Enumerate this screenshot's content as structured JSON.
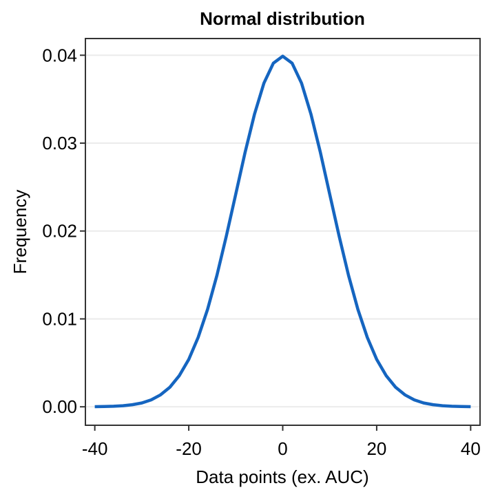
{
  "chart_data": {
    "type": "line",
    "title": "Normal distribution",
    "xlabel": "Data points (ex. AUC)",
    "ylabel": "Frequency",
    "xlim": [
      -42,
      42
    ],
    "ylim": [
      -0.0021,
      0.0419
    ],
    "xticks": [
      -40,
      -20,
      0,
      20,
      40
    ],
    "xtick_labels": [
      "-40",
      "-20",
      "0",
      "20",
      "40"
    ],
    "yticks": [
      0,
      0.01,
      0.02,
      0.03,
      0.04
    ],
    "ytick_labels": [
      "0.00",
      "0.01",
      "0.02",
      "0.03",
      "0.04"
    ],
    "grid": "horizontal major",
    "legend": "none",
    "series": [
      {
        "color": "#1565C0",
        "x": [
          -40,
          -38,
          -36,
          -34,
          -32,
          -30,
          -28,
          -26,
          -24,
          -22,
          -20,
          -18,
          -16,
          -14,
          -12,
          -10,
          -8,
          -6,
          -4,
          -2,
          0,
          2,
          4,
          6,
          8,
          10,
          12,
          14,
          16,
          18,
          20,
          22,
          24,
          26,
          28,
          30,
          32,
          34,
          36,
          38,
          40
        ],
        "y": [
          1e-05,
          3e-05,
          6e-05,
          0.00012,
          0.00024,
          0.00044,
          0.00079,
          0.00136,
          0.00224,
          0.00355,
          0.0054,
          0.00789,
          0.01109,
          0.01497,
          0.01942,
          0.0242,
          0.02897,
          0.03332,
          0.03683,
          0.0391,
          0.03989,
          0.0391,
          0.03683,
          0.03332,
          0.02897,
          0.0242,
          0.01942,
          0.01497,
          0.01109,
          0.00789,
          0.0054,
          0.00355,
          0.00224,
          0.00136,
          0.00079,
          0.00044,
          0.00024,
          0.00012,
          6e-05,
          3e-05,
          1e-05
        ]
      }
    ]
  }
}
